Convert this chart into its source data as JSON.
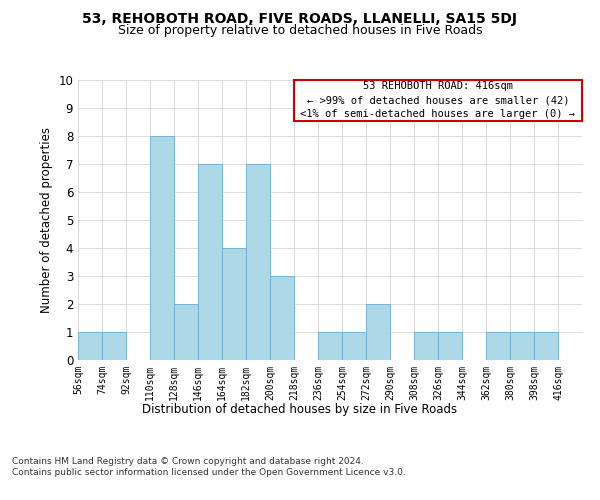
{
  "title": "53, REHOBOTH ROAD, FIVE ROADS, LLANELLI, SA15 5DJ",
  "subtitle": "Size of property relative to detached houses in Five Roads",
  "xlabel": "Distribution of detached houses by size in Five Roads",
  "ylabel": "Number of detached properties",
  "bar_color": "#add8e6",
  "bar_edge_color": "#6baed6",
  "bins": [
    56,
    74,
    92,
    110,
    128,
    146,
    164,
    182,
    200,
    218,
    236,
    254,
    272,
    290,
    308,
    326,
    344,
    362,
    380,
    398,
    416
  ],
  "values": [
    1,
    1,
    0,
    8,
    2,
    7,
    4,
    7,
    3,
    0,
    1,
    1,
    2,
    0,
    1,
    1,
    0,
    1,
    1,
    1
  ],
  "ylim": [
    0,
    10
  ],
  "annotation_text": "53 REHOBOTH ROAD: 416sqm\n← >99% of detached houses are smaller (42)\n<1% of semi-detached houses are larger (0) →",
  "annotation_box_color": "#cc0000",
  "grid_color": "#cccccc",
  "footer_text": "Contains HM Land Registry data © Crown copyright and database right 2024.\nContains public sector information licensed under the Open Government Licence v3.0.",
  "background_color": "#ffffff"
}
